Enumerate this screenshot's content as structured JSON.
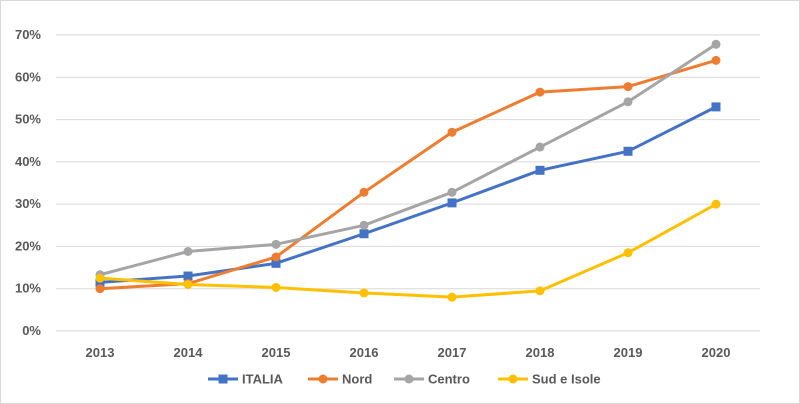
{
  "chart_data": {
    "type": "line",
    "title": "",
    "xlabel": "",
    "ylabel": "",
    "categories": [
      "2013",
      "2014",
      "2015",
      "2016",
      "2017",
      "2018",
      "2019",
      "2020"
    ],
    "ylim": [
      0,
      70
    ],
    "y_ticks": [
      "0%",
      "10%",
      "20%",
      "30%",
      "40%",
      "50%",
      "60%",
      "70%"
    ],
    "grid": "horizontal",
    "legend_position": "bottom",
    "series": [
      {
        "name": "ITALIA",
        "color": "#4472c4",
        "marker": "square",
        "values": [
          11.5,
          13,
          16,
          23,
          30.3,
          38,
          42.5,
          53
        ]
      },
      {
        "name": "Nord",
        "color": "#ed7d31",
        "marker": "circle",
        "values": [
          10,
          11.2,
          17.5,
          32.8,
          47,
          56.5,
          57.8,
          64
        ]
      },
      {
        "name": "Centro",
        "color": "#a5a5a5",
        "marker": "circle",
        "values": [
          13.3,
          18.8,
          20.5,
          25,
          32.8,
          43.5,
          54.2,
          67.8
        ]
      },
      {
        "name": "Sud e Isole",
        "color": "#ffc000",
        "marker": "circle",
        "values": [
          12.5,
          11,
          10.3,
          9,
          8,
          9.5,
          18.5,
          30
        ]
      }
    ]
  }
}
